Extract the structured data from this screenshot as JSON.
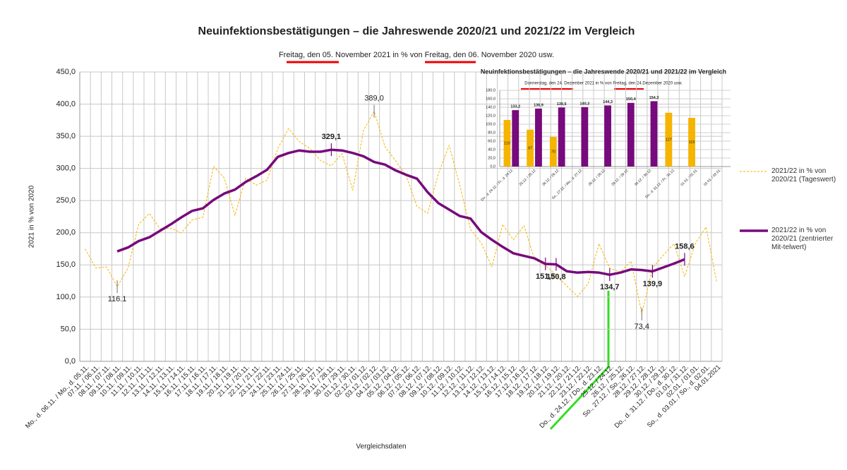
{
  "chart_data": [
    {
      "type": "line",
      "title": "Neuinfektionsbestätigungen – die Jahreswende 2020/21 und 2021/22 im Vergleich",
      "subtitle": "Freitag, den 05. November 2021 in % von Freitag, den 06. November 2020 usw.",
      "y_label": "2021 in % von 2020",
      "x_label": "Vergleichsdaten",
      "grid": true,
      "legend": "right",
      "ylim": [
        0,
        450
      ],
      "yticks": [
        {
          "value": 0,
          "label": "0,0"
        },
        {
          "value": 50,
          "label": "50,0"
        },
        {
          "value": 100,
          "label": "100,0"
        },
        {
          "value": 150,
          "label": "150,0"
        },
        {
          "value": 200,
          "label": "200,0"
        },
        {
          "value": 250,
          "label": "250,0"
        },
        {
          "value": 300,
          "label": "300,0"
        },
        {
          "value": 350,
          "label": "350,0"
        },
        {
          "value": 400,
          "label": "400,0"
        },
        {
          "value": 450,
          "label": "450,0"
        }
      ],
      "categories": [
        "Mo., d. 06.11. / Mo., d. 05.11.",
        "07.11. / 06.11.",
        "08.11. / 07.11.",
        "09.11. / 08.11.",
        "10.11. / 09.11.",
        "11.11. / 10.11.",
        "12.11. / 11.11.",
        "13.11. / 12.11.",
        "14.11. / 13.11.",
        "15.11. / 14.11.",
        "16.11. / 15.11.",
        "17.11. / 16.11.",
        "18.11. / 17.11.",
        "19.11. / 18.11.",
        "20.11. / 19.11.",
        "21.11. / 20.11.",
        "22.11. / 21.11.",
        "23.11. / 22.11.",
        "24.11. / 23.11.",
        "25.11. / 24.11.",
        "26.11. / 25.11.",
        "27.11. / 26.11.",
        "28.11. / 27.11.",
        "29.11. / 28.11.",
        "30.11. / 29.11.",
        "01.12. / 30.11.",
        "02.12. / 01.12.",
        "03.12. / 02.12.",
        "04.12. / 03.12.",
        "05.12. / 04.12.",
        "06.12. / 05.12.",
        "07.12. / 06.12.",
        "08.12. / 07.12.",
        "09.12. / 08.12.",
        "10.12. / 09.12.",
        "11.12. / 10.12.",
        "12.12. / 11.12.",
        "13.12. / 12.12.",
        "14.12. / 13.12.",
        "15.12. / 14.12.",
        "16.12. / 15.12.",
        "17.12. / 16.12.",
        "18.12. / 17.12.",
        "19.12. / 18.12.",
        "20.12. / 19.12.",
        "21.12. / 20.12.",
        "22.12. / 21.12.",
        "23.12. / 22.12.",
        "Do., d. 24.12. / Do., d. 23.12.",
        "25.12. / 24.12.",
        "26.12. / 25.12.",
        "So., 27.12. / So., 26.12.",
        "28.12. / 27.12.",
        "29.12. / 28.12.",
        "30.12. / 29.12.",
        "Do., d. 31.12. / Do., d. 30.12.",
        "01.01. / 31.12.",
        "02.01. / 01.01.",
        "So., d. 03.01. / So., d. 02.01.",
        "04.01.2021"
      ],
      "series": [
        {
          "name": "2021/22 in % von 2020/21 (Tageswert)",
          "color": "#f5b400",
          "dashed": true,
          "values": [
            175,
            145,
            147,
            116.1,
            145,
            213,
            230,
            206,
            207,
            200,
            220,
            224,
            303,
            285,
            227,
            285,
            274,
            282,
            331,
            362,
            342,
            331,
            312,
            304,
            323,
            266,
            359,
            389,
            334,
            312,
            288,
            241,
            230,
            292,
            336,
            274,
            205,
            184,
            147,
            213,
            189,
            211,
            158,
            149,
            134,
            117,
            101,
            121,
            183,
            145,
            139,
            156,
            73.4,
            145,
            165,
            183,
            132,
            183,
            209,
            123
          ],
          "value_labels": [
            null,
            null,
            null,
            "116.1",
            null,
            null,
            null,
            null,
            null,
            null,
            null,
            null,
            null,
            null,
            null,
            null,
            null,
            null,
            null,
            null,
            null,
            null,
            null,
            null,
            null,
            null,
            null,
            "389,0",
            null,
            null,
            null,
            null,
            null,
            null,
            null,
            null,
            null,
            null,
            null,
            null,
            null,
            null,
            null,
            null,
            null,
            null,
            null,
            null,
            null,
            null,
            null,
            null,
            "73,4",
            null,
            null,
            null,
            null,
            null,
            null,
            null
          ]
        },
        {
          "name": "2021/22 in % von 2020/21 (zentrierter Mit-telwert)",
          "color": "#770a7c",
          "dashed": false,
          "values": [
            null,
            null,
            null,
            171,
            177,
            187,
            193,
            203,
            213,
            224,
            234,
            238,
            251,
            261,
            267,
            279,
            288,
            298,
            318,
            324,
            328,
            326,
            326,
            329.1,
            328,
            324,
            319,
            310,
            306,
            297,
            290,
            284,
            263,
            246,
            236,
            226,
            222,
            201,
            189,
            178,
            168,
            164,
            160,
            151.5,
            150.8,
            140,
            138,
            139,
            138,
            134.7,
            138,
            143,
            142,
            139.9,
            146,
            152,
            158.6,
            null,
            null,
            null
          ],
          "value_labels": [
            null,
            null,
            null,
            null,
            null,
            null,
            null,
            null,
            null,
            null,
            null,
            null,
            null,
            null,
            null,
            null,
            null,
            null,
            null,
            null,
            null,
            null,
            null,
            "329,1",
            null,
            null,
            null,
            null,
            null,
            null,
            null,
            null,
            null,
            null,
            null,
            null,
            null,
            null,
            null,
            null,
            null,
            null,
            null,
            "151,5",
            "150,8",
            null,
            null,
            null,
            null,
            "134,7",
            null,
            null,
            null,
            "139,9",
            null,
            null,
            "158,6",
            null,
            null,
            null
          ]
        }
      ]
    },
    {
      "type": "bar",
      "title": "Neuinfektionsbestätigungen – die Jahreswende 2020/21 und 2021/22 im Vergleich",
      "subtitle": "Donnerstag, den 24. Dezember 2021 in % von Freitag, den 24.Dezember 2020 usw.",
      "grid": true,
      "ylim": [
        0,
        180
      ],
      "yticks": [
        {
          "value": 0,
          "label": "0,0"
        },
        {
          "value": 20,
          "label": "20,0"
        },
        {
          "value": 40,
          "label": "40,0"
        },
        {
          "value": 60,
          "label": "60,0"
        },
        {
          "value": 80,
          "label": "80,0"
        },
        {
          "value": 100,
          "label": "100,0"
        },
        {
          "value": 120,
          "label": "120,0"
        },
        {
          "value": 140,
          "label": "140,0"
        },
        {
          "value": 160,
          "label": "160,0"
        },
        {
          "value": 180,
          "label": "180,0"
        }
      ],
      "categories": [
        "Do., d. 24.12. / Fr., d. 24.12.",
        "25.12. / 25.12.",
        "26.12. / 26.12.",
        "So., 27.12. / Mo., d. 27.12.",
        "28.12. / 28.12.",
        "29.12. / 29.12.",
        "30.12. / 30.12.",
        "Do., d. 31.12. / Fr., 31.12.",
        "01.01. / 01.01.",
        "02.01. / 02.01."
      ],
      "series": [
        {
          "color": "#f5b400",
          "values": [
            110,
            87,
            70,
            null,
            null,
            null,
            null,
            127,
            115,
            null
          ]
        },
        {
          "color": "#770a7c",
          "values": [
            133.2,
            136.9,
            139.5,
            140.3,
            144.3,
            150.4,
            154.3,
            null,
            null,
            null
          ],
          "value_labels": [
            "133,2",
            "136,9",
            "139,5",
            "140,3",
            "144,3",
            "150,4",
            "154,3",
            null,
            null,
            null
          ]
        }
      ]
    }
  ]
}
